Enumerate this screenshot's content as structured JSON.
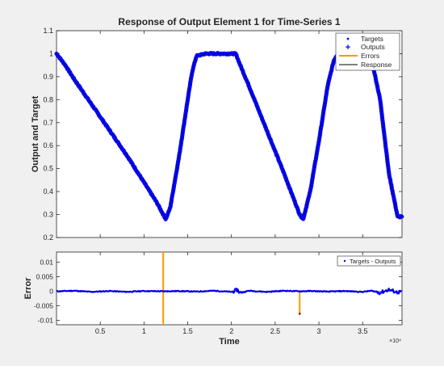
{
  "chart_data": [
    {
      "type": "line",
      "title": "Response of Output Element 1 for Time-Series 1",
      "xlabel": "",
      "ylabel": "Output and Target",
      "xlim": [
        0,
        39500
      ],
      "ylim": [
        0.2,
        1.1
      ],
      "xticks": [
        5000,
        10000,
        15000,
        20000,
        25000,
        30000,
        35000
      ],
      "yticks": [
        0.2,
        0.3,
        0.4,
        0.5,
        0.6,
        0.7,
        0.8,
        0.9,
        1,
        1.1
      ],
      "ytick_labels": [
        "0.2",
        "0.3",
        "0.4",
        "0.5",
        "0.6",
        "0.7",
        "0.8",
        "0.9",
        "1",
        "1.1"
      ],
      "grid": false,
      "legend": {
        "placement": "top-right",
        "entries": [
          "Targets",
          "Outputs",
          "Errors",
          "Response"
        ]
      },
      "colors": {
        "targets": "#0000ff",
        "outputs": "#0000ff",
        "errors": "#ff9900",
        "response": "#000000"
      },
      "series": [
        {
          "name": "Targets",
          "x": [
            0,
            1000,
            2000,
            4000,
            6000,
            8000,
            10000,
            11500,
            12200,
            12500,
            13000,
            14000,
            15000,
            15500,
            16000,
            17000,
            18000,
            20500,
            20900,
            22000,
            24000,
            26000,
            27000,
            27800,
            28200,
            29000,
            30000,
            31000,
            31700,
            32000,
            32300,
            33000,
            34000,
            35000,
            36000,
            37000,
            38000,
            39000,
            39500
          ],
          "values": [
            1,
            0.95,
            0.89,
            0.78,
            0.67,
            0.56,
            0.44,
            0.35,
            0.3,
            0.28,
            0.33,
            0.55,
            0.8,
            0.92,
            0.99,
            1,
            1,
            1,
            0.96,
            0.86,
            0.67,
            0.48,
            0.38,
            0.3,
            0.28,
            0.4,
            0.62,
            0.86,
            0.97,
            0.99,
            1,
            1,
            1,
            1,
            0.98,
            0.8,
            0.48,
            0.29,
            0.29
          ]
        }
      ]
    },
    {
      "type": "line",
      "title": "",
      "xlabel": "Time",
      "ylabel": "Error",
      "x_multiplier": "×10⁴",
      "xlim": [
        0,
        39500
      ],
      "ylim": [
        -0.0115,
        0.0135
      ],
      "xticks": [
        5000,
        10000,
        15000,
        20000,
        25000,
        30000,
        35000
      ],
      "xtick_labels": [
        "0.5",
        "1",
        "1.5",
        "2",
        "2.5",
        "3",
        "3.5"
      ],
      "yticks": [
        -0.01,
        -0.005,
        0,
        0.005,
        0.01
      ],
      "ytick_labels": [
        "-0.01",
        "-0.005",
        "0",
        "0.005",
        "0.01"
      ],
      "grid": false,
      "legend": {
        "placement": "top-right",
        "entries": [
          "Targets - Outputs"
        ]
      },
      "colors": {
        "errors": "#0000ff",
        "spikes": "#ff9900"
      },
      "series": [
        {
          "name": "Targets - Outputs",
          "x": [
            0,
            2000,
            4000,
            6000,
            8000,
            10000,
            12200,
            14000,
            16000,
            18000,
            20000,
            20700,
            21000,
            22000,
            24000,
            26000,
            27800,
            29000,
            31000,
            33000,
            35000,
            36000,
            37000,
            38000,
            39000,
            39500
          ],
          "values": [
            0,
            0.0002,
            -0.0002,
            0.0001,
            -0.0002,
            0.0001,
            0,
            0.0001,
            -0.0001,
            0.0002,
            -0.0002,
            0.0005,
            -0.0006,
            0.0002,
            -0.0002,
            0.0002,
            0,
            0.0001,
            -0.0001,
            0.0001,
            -0.0002,
            0.0002,
            -0.0005,
            0.0006,
            -0.0004,
            0
          ]
        }
      ],
      "spikes": [
        {
          "x": 12200,
          "from": 0.0135,
          "to": -0.0115
        },
        {
          "x": 27800,
          "from": 0,
          "to": -0.0077
        }
      ]
    }
  ]
}
